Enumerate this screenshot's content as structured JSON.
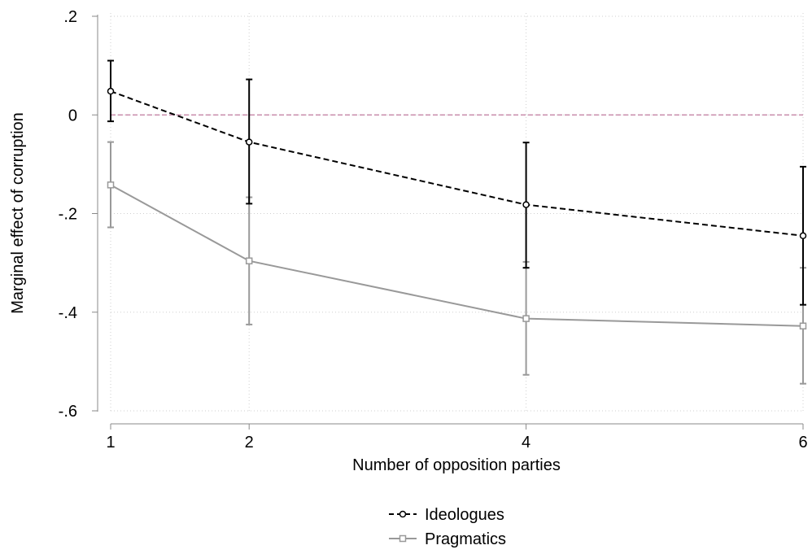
{
  "chart_data": {
    "type": "line",
    "xlabel": "Number of opposition parties",
    "ylabel": "Marginal effect of corruption",
    "x_ticks": [
      1,
      2,
      4,
      6
    ],
    "x_tick_labels": [
      "1",
      "2",
      "4",
      "6"
    ],
    "xlim": [
      1,
      6
    ],
    "y_ticks": [
      0.2,
      0,
      -0.2,
      -0.4,
      -0.6
    ],
    "y_tick_labels": [
      ".2",
      "0",
      "-.2",
      "-.4",
      "-.6"
    ],
    "ylim": [
      -0.6,
      0.2
    ],
    "grid": true,
    "reference_line": {
      "y": 0,
      "color": "#c0799f",
      "style": "dashed"
    },
    "legend": {
      "placement": "bottom-center"
    },
    "series": [
      {
        "name": "Ideologues",
        "color": "#000000",
        "line_style": "dashed",
        "marker": "circle",
        "x": [
          1,
          2,
          4,
          6
        ],
        "y": [
          0.048,
          -0.055,
          -0.182,
          -0.245
        ],
        "ci_low": [
          -0.013,
          -0.18,
          -0.31,
          -0.385
        ],
        "ci_high": [
          0.11,
          0.072,
          -0.056,
          -0.105
        ]
      },
      {
        "name": "Pragmatics",
        "color": "#999999",
        "line_style": "solid",
        "marker": "square",
        "x": [
          1,
          2,
          4,
          6
        ],
        "y": [
          -0.142,
          -0.296,
          -0.413,
          -0.428
        ],
        "ci_low": [
          -0.228,
          -0.425,
          -0.527,
          -0.545
        ],
        "ci_high": [
          -0.055,
          -0.167,
          -0.298,
          -0.31
        ]
      }
    ]
  }
}
